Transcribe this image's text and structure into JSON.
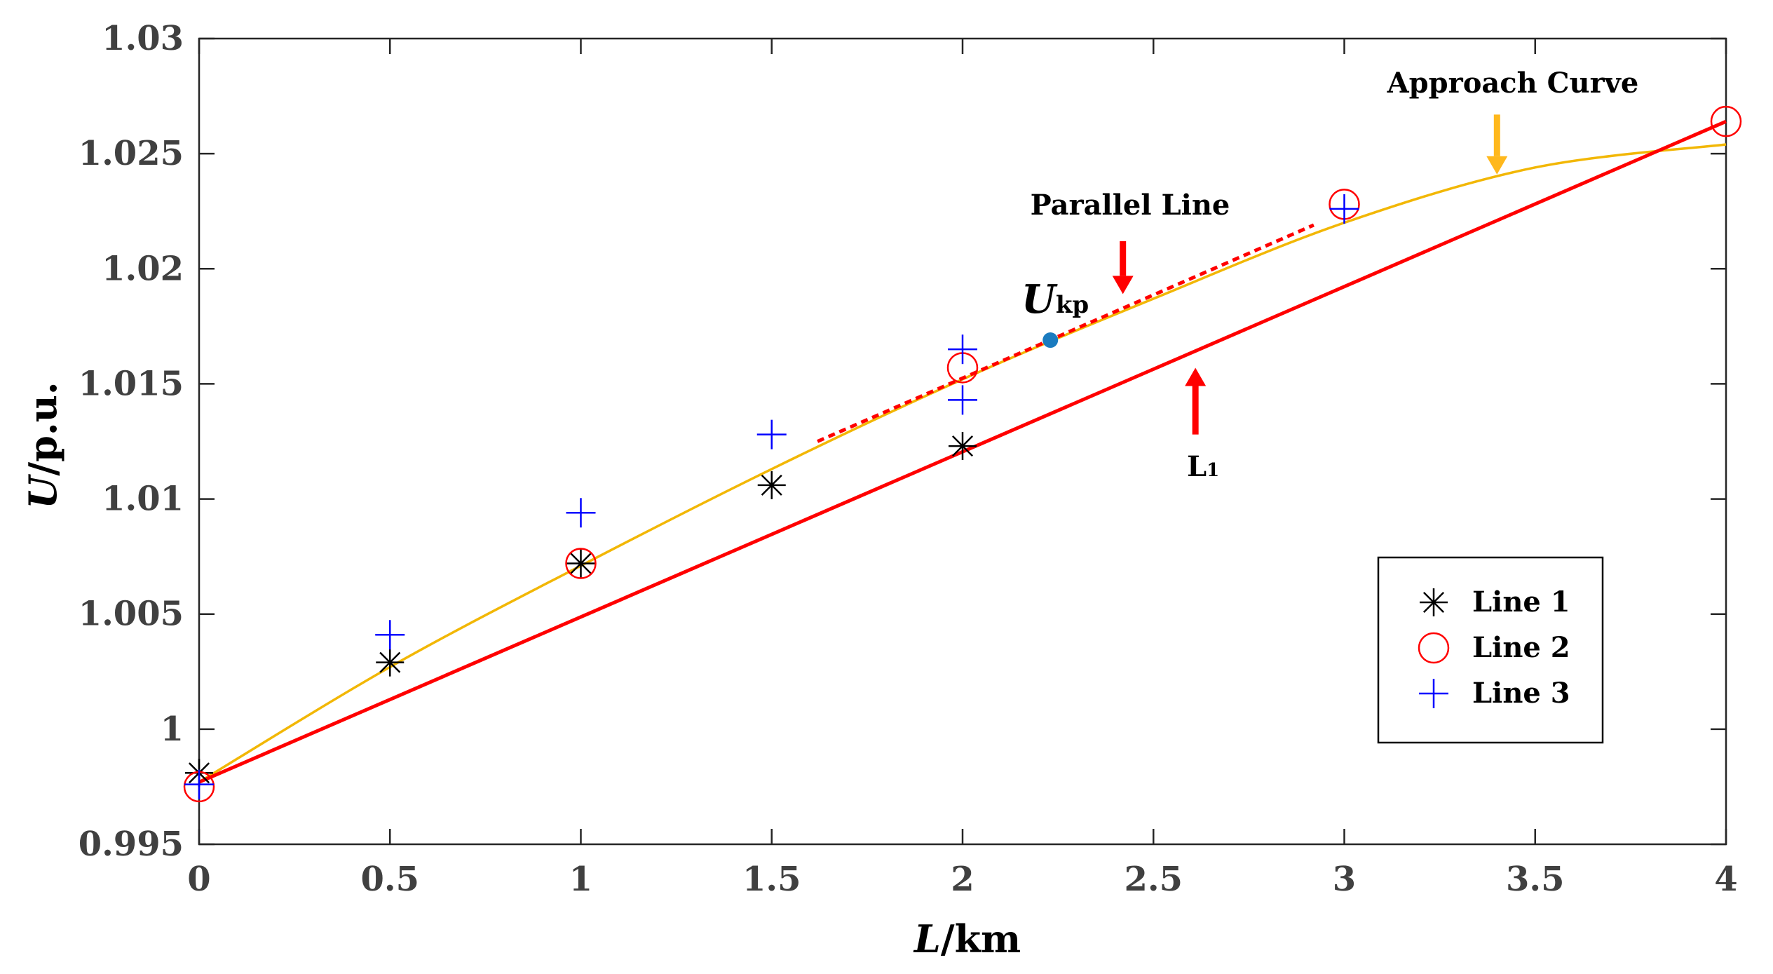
{
  "chart_data": {
    "type": "scatter",
    "title": "",
    "xlabel_italic": "L",
    "xlabel_rest": "/km",
    "ylabel_italic": "U",
    "ylabel_rest": "/p.u.",
    "xlim": [
      0,
      4
    ],
    "ylim": [
      0.995,
      1.03
    ],
    "xticks": [
      0,
      0.5,
      1,
      1.5,
      2,
      2.5,
      3,
      3.5,
      4
    ],
    "xtick_labels": [
      "0",
      "0.5",
      "1",
      "1.5",
      "2",
      "2.5",
      "3",
      "3.5",
      "4"
    ],
    "yticks": [
      0.995,
      1,
      1.005,
      1.01,
      1.015,
      1.02,
      1.025,
      1.03
    ],
    "ytick_labels": [
      "0.995",
      "1",
      "1.005",
      "1.01",
      "1.015",
      "1.02",
      "1.025",
      "1.03"
    ],
    "grid": false,
    "legend_position": "bottom-right",
    "series": [
      {
        "name": "Line 1",
        "marker": "asterisk",
        "color": "#000000",
        "x": [
          0,
          0.5,
          1,
          1.5,
          2
        ],
        "y": [
          0.9981,
          1.0029,
          1.0072,
          1.0106,
          1.0123
        ]
      },
      {
        "name": "Line 2",
        "marker": "circle",
        "color": "#ff0000",
        "x": [
          0,
          1,
          2,
          3,
          4
        ],
        "y": [
          0.9975,
          1.0072,
          1.0157,
          1.0228,
          1.0264
        ]
      },
      {
        "name": "Line 3",
        "marker": "plus",
        "color": "#0000ff",
        "x": [
          0,
          0.5,
          1,
          1.5,
          2,
          2,
          3
        ],
        "y": [
          0.9976,
          1.0041,
          1.0094,
          1.0128,
          1.0165,
          1.0143,
          1.0226
        ]
      }
    ],
    "lines": [
      {
        "name": "Approach Curve",
        "color": "#f2b705",
        "style": "solid",
        "x": [
          0,
          0.5,
          1,
          1.5,
          2,
          2.5,
          3,
          3.5,
          4
        ],
        "y": [
          0.9977,
          1.0027,
          1.0071,
          1.0113,
          1.0152,
          1.0187,
          1.022,
          1.0244,
          1.0254
        ]
      },
      {
        "name": "L1",
        "color": "#ff0000",
        "style": "solid",
        "x": [
          0,
          4
        ],
        "y": [
          0.9977,
          1.0264
        ]
      },
      {
        "name": "Parallel Line",
        "color": "#ff0000",
        "style": "dashed",
        "x": [
          1.62,
          2.92
        ],
        "y": [
          1.0125,
          1.0219
        ]
      }
    ],
    "point": {
      "name": "Ukp",
      "x": 2.23,
      "y": 1.0169,
      "color": "#1a7bbf"
    },
    "annotations": {
      "approach_curve": "Approach Curve",
      "parallel_line": "Parallel Line",
      "ukp_main": "U",
      "ukp_sub": "kp",
      "l1_main": "L",
      "l1_sub": "1"
    },
    "arrows": [
      {
        "target": "Approach Curve",
        "color": "#ffb81c",
        "direction": "down",
        "x": 3.4,
        "y_from": 1.0267,
        "y_to": 1.0241
      },
      {
        "target": "Parallel Line",
        "color": "#ff0000",
        "direction": "down",
        "x": 2.42,
        "y_from": 1.0212,
        "y_to": 1.0189
      },
      {
        "target": "L1",
        "color": "#ff0000",
        "direction": "up",
        "x": 2.61,
        "y_from": 1.0128,
        "y_to": 1.0157
      }
    ]
  }
}
